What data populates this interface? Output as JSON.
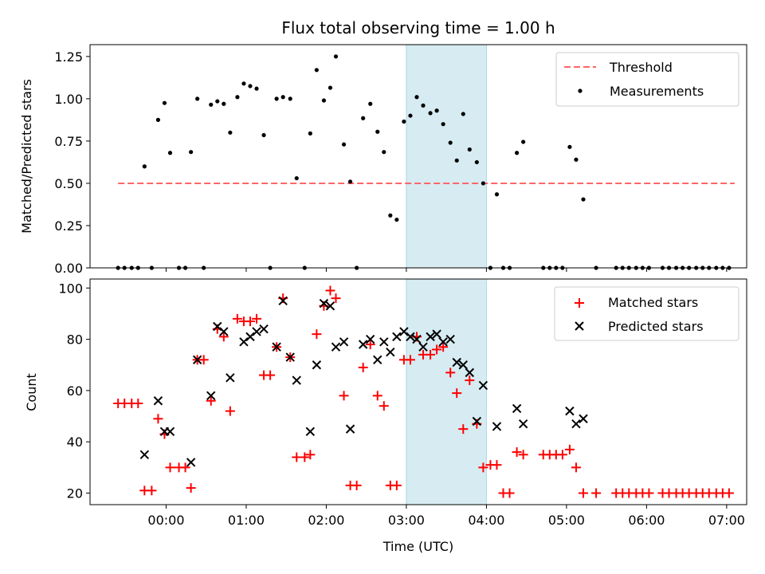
{
  "chart_data": [
    {
      "type": "scatter",
      "title": "Flux total observing time = 1.00 h",
      "xlabel": "",
      "ylabel": "Matched/Predicted stars",
      "x_unit": "hours UTC",
      "xlim": [
        -0.95,
        7.25
      ],
      "ylim": [
        0,
        1.32
      ],
      "yticks": [
        "0.00",
        "0.25",
        "0.50",
        "0.75",
        "1.00",
        "1.25"
      ],
      "grid": false,
      "legend_position": "upper right",
      "shaded_region": {
        "x_start": 3.0,
        "x_end": 4.0,
        "color": "#add8e6"
      },
      "threshold": {
        "name": "Threshold",
        "y": 0.5,
        "x_range": [
          -0.6,
          7.1
        ],
        "color": "#ff6666",
        "style": "dashed"
      },
      "series": [
        {
          "name": "Measurements",
          "marker": "dot",
          "color": "#000000",
          "x": [
            -0.6,
            -0.52,
            -0.43,
            -0.35,
            -0.27,
            -0.18,
            -0.1,
            -0.02,
            0.05,
            0.16,
            0.24,
            0.31,
            0.39,
            0.47,
            0.56,
            0.64,
            0.72,
            0.8,
            0.89,
            0.97,
            1.05,
            1.13,
            1.22,
            1.3,
            1.38,
            1.46,
            1.55,
            1.63,
            1.73,
            1.8,
            1.88,
            1.97,
            2.05,
            2.12,
            2.22,
            2.3,
            2.38,
            2.46,
            2.55,
            2.64,
            2.72,
            2.8,
            2.88,
            2.97,
            3.05,
            3.13,
            3.21,
            3.3,
            3.38,
            3.46,
            3.55,
            3.63,
            3.71,
            3.79,
            3.88,
            3.96,
            4.05,
            4.13,
            4.21,
            4.29,
            4.38,
            4.46,
            4.71,
            4.79,
            4.87,
            4.95,
            5.04,
            5.12,
            5.21,
            5.37,
            5.62,
            5.7,
            5.78,
            5.87,
            5.95,
            6.03,
            6.2,
            6.28,
            6.37,
            6.45,
            6.53,
            6.62,
            6.7,
            6.78,
            6.87,
            6.95,
            7.03
          ],
          "y": [
            0,
            0,
            0,
            0,
            0.6,
            0,
            0.875,
            0.975,
            0.68,
            0,
            0,
            0.685,
            1.0,
            0,
            0.965,
            0.985,
            0.97,
            0.8,
            1.01,
            1.09,
            1.075,
            1.06,
            0.785,
            0,
            1.0,
            1.01,
            1.0,
            0.53,
            0,
            0.795,
            1.17,
            0.99,
            1.065,
            1.25,
            0.73,
            0.51,
            0,
            0.885,
            0.97,
            0.805,
            0.685,
            0.31,
            0.285,
            0.865,
            0.9,
            1.01,
            0.96,
            0.915,
            0.93,
            0.85,
            0.74,
            0.635,
            0.91,
            0.7,
            0.625,
            0.5,
            0,
            0.435,
            0,
            0,
            0.68,
            0.745,
            0,
            0,
            0,
            0,
            0.715,
            0.64,
            0.405,
            0,
            0,
            0,
            0,
            0,
            0,
            0,
            0,
            0,
            0,
            0,
            0,
            0,
            0,
            0,
            0,
            0,
            0
          ]
        }
      ]
    },
    {
      "type": "scatter",
      "title": "",
      "xlabel": "Time (UTC)",
      "ylabel": "Count",
      "x_unit": "hours UTC",
      "xlim": [
        -0.95,
        7.25
      ],
      "ylim": [
        15.5,
        103.5
      ],
      "xticks": [
        {
          "v": 0,
          "label": "00:00"
        },
        {
          "v": 1,
          "label": "01:00"
        },
        {
          "v": 2,
          "label": "02:00"
        },
        {
          "v": 3,
          "label": "03:00"
        },
        {
          "v": 4,
          "label": "04:00"
        },
        {
          "v": 5,
          "label": "05:00"
        },
        {
          "v": 6,
          "label": "06:00"
        },
        {
          "v": 7,
          "label": "07:00"
        }
      ],
      "yticks": [
        "20",
        "40",
        "60",
        "80",
        "100"
      ],
      "grid": false,
      "legend_position": "upper right",
      "shaded_region": {
        "x_start": 3.0,
        "x_end": 4.0,
        "color": "#add8e6"
      },
      "series": [
        {
          "name": "Matched stars",
          "marker": "plus",
          "color": "#ff0000",
          "x": [
            -0.6,
            -0.52,
            -0.43,
            -0.35,
            -0.27,
            -0.18,
            -0.1,
            -0.02,
            0.05,
            0.16,
            0.24,
            0.31,
            0.39,
            0.47,
            0.56,
            0.64,
            0.72,
            0.8,
            0.89,
            0.97,
            1.05,
            1.13,
            1.22,
            1.3,
            1.38,
            1.46,
            1.55,
            1.63,
            1.73,
            1.8,
            1.88,
            1.97,
            2.05,
            2.12,
            2.22,
            2.3,
            2.38,
            2.46,
            2.55,
            2.64,
            2.72,
            2.8,
            2.88,
            2.97,
            3.05,
            3.13,
            3.21,
            3.3,
            3.38,
            3.46,
            3.55,
            3.63,
            3.71,
            3.79,
            3.88,
            3.96,
            4.05,
            4.13,
            4.21,
            4.29,
            4.38,
            4.46,
            4.71,
            4.79,
            4.87,
            4.95,
            5.04,
            5.12,
            5.21,
            5.37,
            5.62,
            5.7,
            5.78,
            5.87,
            5.95,
            6.03,
            6.2,
            6.28,
            6.37,
            6.45,
            6.53,
            6.62,
            6.7,
            6.78,
            6.87,
            6.95,
            7.03
          ],
          "y": [
            55,
            55,
            55,
            55,
            21,
            21,
            49,
            43,
            30,
            30,
            30,
            22,
            72,
            72,
            56,
            84,
            81,
            52,
            88,
            87,
            87,
            88,
            66,
            66,
            77,
            96,
            73,
            34,
            34,
            35,
            82,
            93,
            99,
            96,
            58,
            23,
            23,
            69,
            78,
            58,
            54,
            23,
            23,
            72,
            72,
            81,
            74,
            74,
            76,
            77,
            67,
            59,
            45,
            64,
            47,
            30,
            31,
            31,
            20,
            20,
            36,
            35,
            35,
            35,
            35,
            35,
            37,
            30,
            20,
            20,
            20,
            20,
            20,
            20,
            20,
            20,
            20,
            20,
            20,
            20,
            20,
            20,
            20,
            20,
            20,
            20,
            20
          ]
        },
        {
          "name": "Predicted stars",
          "marker": "x",
          "color": "#000000",
          "x": [
            -0.27,
            -0.1,
            -0.02,
            0.05,
            0.31,
            0.39,
            0.56,
            0.64,
            0.72,
            0.8,
            0.97,
            1.05,
            1.13,
            1.22,
            1.38,
            1.46,
            1.55,
            1.63,
            1.8,
            1.88,
            1.97,
            2.05,
            2.12,
            2.22,
            2.3,
            2.46,
            2.55,
            2.64,
            2.72,
            2.8,
            2.88,
            2.97,
            3.05,
            3.13,
            3.21,
            3.3,
            3.38,
            3.46,
            3.55,
            3.63,
            3.71,
            3.79,
            3.88,
            3.96,
            4.13,
            4.38,
            4.46,
            5.04,
            5.12,
            5.21
          ],
          "y": [
            35,
            56,
            44,
            44,
            32,
            72,
            58,
            85,
            83,
            65,
            79,
            81,
            83,
            84,
            77,
            95,
            73,
            64,
            44,
            70,
            94,
            93,
            77,
            79,
            45,
            78,
            80,
            72,
            79,
            75,
            81,
            83,
            81,
            80,
            77,
            81,
            82,
            79,
            80,
            71,
            70,
            67,
            48,
            62,
            46,
            53,
            47,
            52,
            47,
            49
          ]
        }
      ]
    }
  ]
}
